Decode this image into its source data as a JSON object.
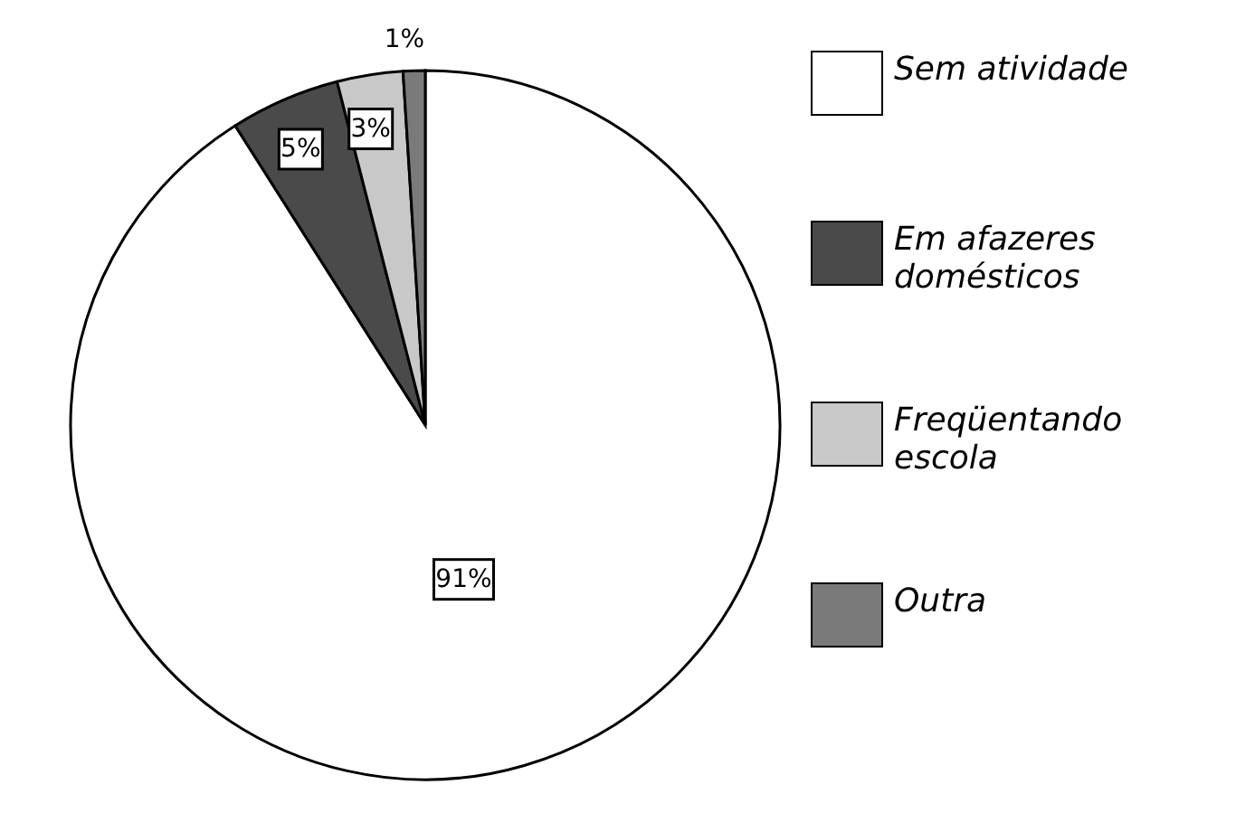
{
  "chart_data": {
    "type": "pie",
    "categories": [
      "Sem atividade",
      "Em afazeres domésticos",
      "Freqüentando escola",
      "Outra"
    ],
    "values": [
      91,
      5,
      3,
      1
    ],
    "colors": [
      "#ffffff",
      "#4a4a4a",
      "#c8c8c8",
      "#7a7a7a"
    ],
    "value_labels": [
      "91%",
      "5%",
      "3%",
      "1%"
    ],
    "legend": "right"
  }
}
